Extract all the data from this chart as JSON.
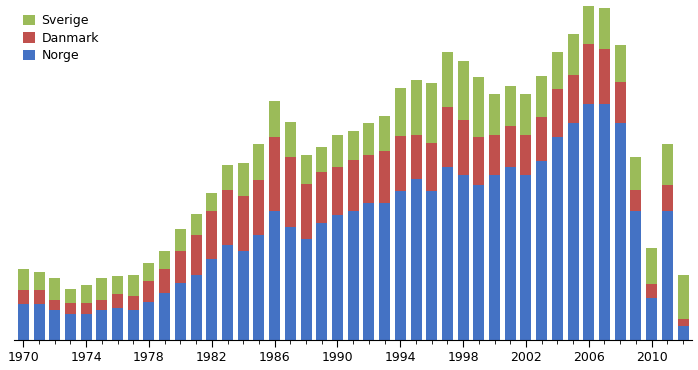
{
  "years": [
    1970,
    1971,
    1972,
    1973,
    1974,
    1975,
    1976,
    1977,
    1978,
    1979,
    1980,
    1981,
    1982,
    1983,
    1984,
    1985,
    1986,
    1987,
    1988,
    1989,
    1990,
    1991,
    1992,
    1993,
    1994,
    1995,
    1996,
    1997,
    1998,
    1999,
    2000,
    2001,
    2002,
    2003,
    2004,
    2005,
    2006,
    2007,
    2008,
    2009,
    2010,
    2011,
    2012
  ],
  "norge": [
    30,
    30,
    25,
    22,
    22,
    25,
    27,
    25,
    32,
    40,
    48,
    55,
    68,
    80,
    75,
    88,
    108,
    95,
    85,
    98,
    105,
    108,
    115,
    115,
    125,
    135,
    125,
    145,
    138,
    130,
    138,
    145,
    138,
    150,
    170,
    182,
    198,
    198,
    182,
    108,
    35,
    108,
    12
  ],
  "danmark": [
    12,
    12,
    9,
    9,
    9,
    9,
    12,
    12,
    18,
    20,
    27,
    33,
    40,
    46,
    46,
    46,
    62,
    58,
    46,
    43,
    40,
    43,
    40,
    43,
    46,
    37,
    40,
    50,
    46,
    40,
    34,
    34,
    34,
    37,
    40,
    40,
    50,
    46,
    34,
    18,
    12,
    22,
    6
  ],
  "sverige": [
    18,
    15,
    18,
    12,
    15,
    18,
    15,
    18,
    15,
    15,
    18,
    18,
    15,
    21,
    27,
    30,
    30,
    30,
    24,
    21,
    27,
    24,
    27,
    30,
    40,
    46,
    50,
    46,
    50,
    50,
    34,
    34,
    34,
    34,
    31,
    34,
    50,
    34,
    31,
    27,
    30,
    34,
    37
  ],
  "norge_color": "#4472C4",
  "danmark_color": "#C0504D",
  "sverige_color": "#9BBB59",
  "tick_years": [
    1970,
    1974,
    1978,
    1982,
    1986,
    1990,
    1994,
    1998,
    2002,
    2006,
    2010
  ],
  "ylim": [
    0,
    280
  ],
  "background_color": "#FFFFFF",
  "bar_width": 0.7
}
